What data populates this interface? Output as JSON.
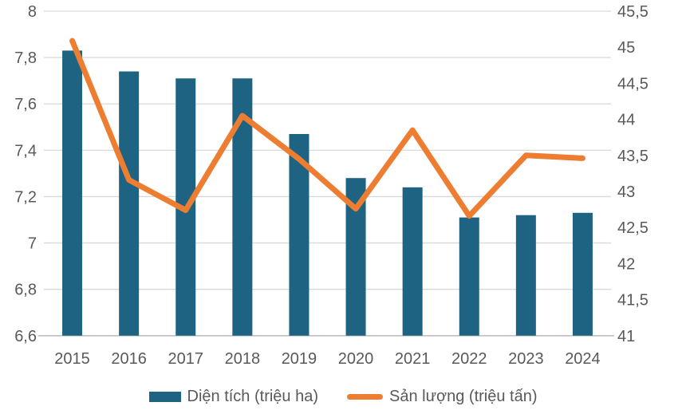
{
  "chart_data": {
    "type": "combo",
    "title": "",
    "categories": [
      "2015",
      "2016",
      "2017",
      "2018",
      "2019",
      "2020",
      "2021",
      "2022",
      "2023",
      "2024"
    ],
    "series": [
      {
        "name": "Diện tích (triệu ha)",
        "type": "bar",
        "axis": "left",
        "color": "#1E6482",
        "values": [
          7.83,
          7.74,
          7.71,
          7.71,
          7.47,
          7.28,
          7.24,
          7.11,
          7.12,
          7.13
        ]
      },
      {
        "name": "Sản lượng (triệu tấn)",
        "type": "line",
        "axis": "right",
        "color": "#ED7D31",
        "values": [
          45.09,
          43.16,
          42.74,
          44.05,
          43.45,
          42.76,
          43.85,
          42.66,
          43.5,
          43.46
        ]
      }
    ],
    "left_axis": {
      "min": 6.6,
      "max": 8,
      "step": 0.2,
      "tick_labels": [
        "8",
        "7,8",
        "7,6",
        "7,4",
        "7,2",
        "7",
        "6,8",
        "6,6"
      ]
    },
    "right_axis": {
      "min": 41,
      "max": 45.5,
      "step": 0.5,
      "tick_labels": [
        "45,5",
        "45",
        "44,5",
        "44",
        "43,5",
        "43",
        "42,5",
        "42",
        "41,5",
        "41"
      ]
    },
    "grid": true,
    "legend_position": "bottom",
    "colors": {
      "grid": "#D9D9D9",
      "axis_line": "#BFBFBF",
      "tick_text": "#595959"
    }
  }
}
